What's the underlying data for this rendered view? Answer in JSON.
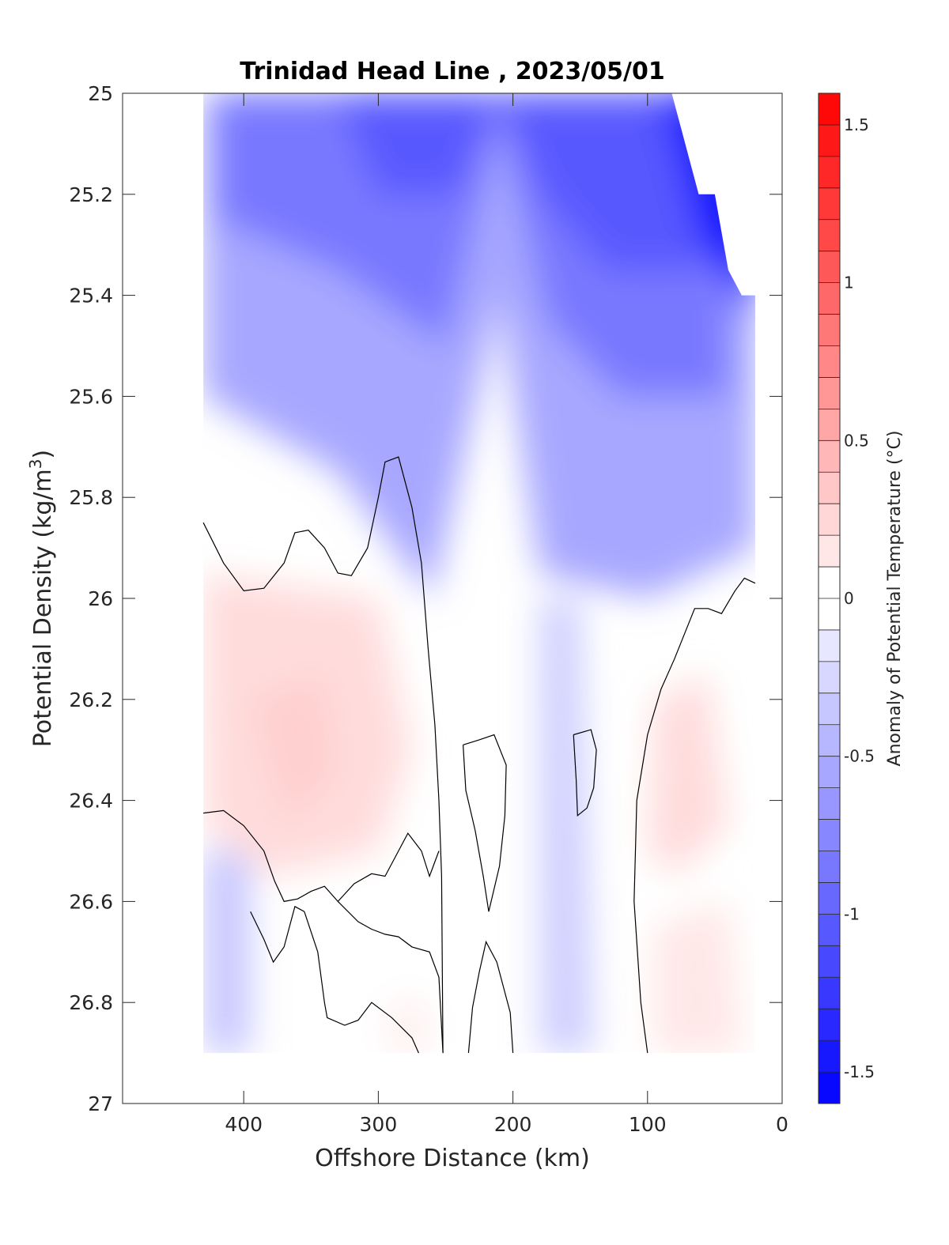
{
  "chart_data": {
    "type": "heatmap",
    "title": "Trinidad Head Line , 2023/05/01",
    "xlabel": "Offshore Distance (km)",
    "ylabel": "Potential Density (kg/m^3)",
    "ylabel_parts": {
      "base": "Potential Density (kg/m",
      "sup": "3",
      "tail": ")"
    },
    "colorbar_label": "Anomaly of Potential Temperature (°C)",
    "xlim": [
      490,
      0
    ],
    "ylim": [
      27,
      25
    ],
    "x_reversed": true,
    "y_reversed": true,
    "x_ticks": [
      400,
      300,
      200,
      100,
      0
    ],
    "y_ticks": [
      25,
      25.2,
      25.4,
      25.6,
      25.8,
      26,
      26.2,
      26.4,
      26.6,
      26.8,
      27
    ],
    "colorbar": {
      "range": [
        -1.6,
        1.6
      ],
      "step": 0.1,
      "ticks": [
        -1.5,
        -1,
        -0.5,
        0,
        0.5,
        1,
        1.5
      ],
      "colormap": "blue-white-red",
      "low_color": "#0000ff",
      "mid_color": "#ffffff",
      "high_color": "#ff0000"
    },
    "data_extent": {
      "x": [
        20,
        430
      ],
      "y": [
        25,
        26.9
      ]
    },
    "zero_contour_lines": [
      [
        [
          430,
          25.85
        ],
        [
          415,
          25.93
        ],
        [
          400,
          25.985
        ],
        [
          385,
          25.98
        ],
        [
          370,
          25.93
        ],
        [
          362,
          25.87
        ],
        [
          352,
          25.865
        ],
        [
          340,
          25.9
        ],
        [
          330,
          25.95
        ],
        [
          320,
          25.955
        ],
        [
          308,
          25.9
        ],
        [
          300,
          25.8
        ],
        [
          295,
          25.73
        ],
        [
          285,
          25.72
        ],
        [
          275,
          25.82
        ],
        [
          268,
          25.93
        ],
        [
          263,
          26.1
        ],
        [
          258,
          26.25
        ],
        [
          255,
          26.4
        ],
        [
          253,
          26.55
        ],
        [
          252,
          26.9
        ]
      ],
      [
        [
          430,
          26.425
        ],
        [
          415,
          26.42
        ],
        [
          400,
          26.45
        ],
        [
          385,
          26.5
        ],
        [
          377,
          26.56
        ],
        [
          370,
          26.6
        ],
        [
          360,
          26.595
        ],
        [
          350,
          26.58
        ],
        [
          340,
          26.57
        ],
        [
          330,
          26.6
        ],
        [
          318,
          26.565
        ],
        [
          305,
          26.545
        ],
        [
          295,
          26.55
        ],
        [
          285,
          26.5
        ],
        [
          278,
          26.465
        ],
        [
          268,
          26.5
        ],
        [
          262,
          26.55
        ],
        [
          255,
          26.5
        ]
      ],
      [
        [
          330,
          26.6
        ],
        [
          315,
          26.64
        ],
        [
          305,
          26.655
        ],
        [
          295,
          26.665
        ],
        [
          285,
          26.67
        ],
        [
          275,
          26.69
        ],
        [
          262,
          26.7
        ],
        [
          255,
          26.75
        ],
        [
          252,
          26.9
        ]
      ],
      [
        [
          355,
          26.62
        ],
        [
          345,
          26.7
        ],
        [
          340,
          26.8
        ],
        [
          338,
          26.83
        ],
        [
          325,
          26.845
        ],
        [
          315,
          26.835
        ],
        [
          305,
          26.8
        ],
        [
          290,
          26.83
        ],
        [
          275,
          26.87
        ],
        [
          270,
          26.9
        ]
      ],
      [
        [
          355,
          26.62
        ],
        [
          362,
          26.61
        ],
        [
          370,
          26.69
        ],
        [
          378,
          26.72
        ],
        [
          385,
          26.675
        ],
        [
          395,
          26.62
        ]
      ],
      [
        [
          233,
          26.9
        ],
        [
          230,
          26.81
        ],
        [
          225,
          26.74
        ],
        [
          220,
          26.68
        ],
        [
          212,
          26.72
        ],
        [
          202,
          26.82
        ],
        [
          200,
          26.9
        ]
      ],
      [
        [
          237,
          26.29
        ],
        [
          235,
          26.38
        ],
        [
          228,
          26.46
        ],
        [
          222,
          26.55
        ],
        [
          218,
          26.62
        ],
        [
          210,
          26.53
        ],
        [
          206,
          26.43
        ],
        [
          205,
          26.33
        ],
        [
          214,
          26.27
        ],
        [
          225,
          26.28
        ],
        [
          237,
          26.29
        ]
      ],
      [
        [
          155,
          26.27
        ],
        [
          153,
          26.36
        ],
        [
          152,
          26.43
        ],
        [
          145,
          26.415
        ],
        [
          140,
          26.375
        ],
        [
          138,
          26.3
        ],
        [
          142,
          26.26
        ],
        [
          155,
          26.27
        ]
      ],
      [
        [
          20,
          25.97
        ],
        [
          28,
          25.96
        ],
        [
          35,
          25.985
        ],
        [
          45,
          26.03
        ],
        [
          55,
          26.02
        ],
        [
          65,
          26.02
        ],
        [
          80,
          26.12
        ],
        [
          90,
          26.18
        ],
        [
          100,
          26.27
        ],
        [
          108,
          26.4
        ],
        [
          110,
          26.6
        ],
        [
          105,
          26.8
        ],
        [
          100,
          26.9
        ]
      ]
    ]
  }
}
